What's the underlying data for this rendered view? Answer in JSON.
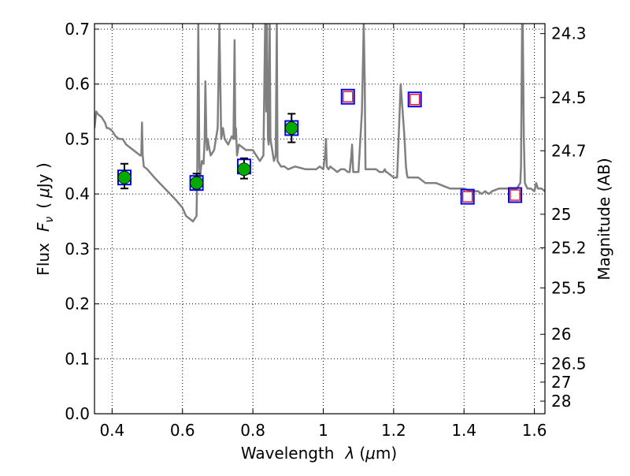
{
  "chart_data": {
    "type": "line",
    "xlabel_text": "Wavelength",
    "xlabel_symbol": "λ",
    "xlabel_unit_open": "(",
    "xlabel_unit_mu": "μ",
    "xlabel_unit_rest": "m)",
    "ylabel_text": "Flux",
    "ylabel_symbol": "F",
    "ylabel_subscript": "ν",
    "ylabel_unit_open": "(",
    "ylabel_unit_mu": "μ",
    "ylabel_unit_rest": "Jy )",
    "y2label": "Magnitude (AB)",
    "xlim": [
      0.35,
      1.63
    ],
    "ylim": [
      0.0,
      0.71
    ],
    "grid": true,
    "grid_style": "dotted",
    "x_ticks": [
      {
        "value": 0.4,
        "label": "0.4"
      },
      {
        "value": 0.6,
        "label": "0.6"
      },
      {
        "value": 0.8,
        "label": "0.8"
      },
      {
        "value": 1.0,
        "label": "1"
      },
      {
        "value": 1.2,
        "label": "1.2"
      },
      {
        "value": 1.4,
        "label": "1.4"
      },
      {
        "value": 1.6,
        "label": "1.6"
      }
    ],
    "y_ticks": [
      {
        "value": 0.0,
        "label": "0.0"
      },
      {
        "value": 0.1,
        "label": "0.1"
      },
      {
        "value": 0.2,
        "label": "0.2"
      },
      {
        "value": 0.3,
        "label": "0.3"
      },
      {
        "value": 0.4,
        "label": "0.4"
      },
      {
        "value": 0.5,
        "label": "0.5"
      },
      {
        "value": 0.6,
        "label": "0.6"
      },
      {
        "value": 0.7,
        "label": "0.7"
      }
    ],
    "y2_ticks": [
      {
        "value": 24.3,
        "label": "24.3"
      },
      {
        "value": 24.5,
        "label": "24.5"
      },
      {
        "value": 24.7,
        "label": "24.7"
      },
      {
        "value": 25.0,
        "label": "25"
      },
      {
        "value": 25.2,
        "label": "25.2"
      },
      {
        "value": 25.5,
        "label": "25.5"
      },
      {
        "value": 26.0,
        "label": "26"
      },
      {
        "value": 26.5,
        "label": "26.5"
      },
      {
        "value": 27.0,
        "label": "27"
      },
      {
        "value": 28.0,
        "label": "28"
      }
    ],
    "series": [
      {
        "kind": "model-spectrum",
        "color": "#808080",
        "x": [
          0.35,
          0.355,
          0.36,
          0.37,
          0.38,
          0.385,
          0.39,
          0.4,
          0.41,
          0.42,
          0.43,
          0.44,
          0.45,
          0.46,
          0.47,
          0.48,
          0.483,
          0.485,
          0.487,
          0.49,
          0.5,
          0.52,
          0.55,
          0.58,
          0.6,
          0.61,
          0.62,
          0.63,
          0.64,
          0.642,
          0.645,
          0.648,
          0.65,
          0.653,
          0.655,
          0.66,
          0.663,
          0.665,
          0.668,
          0.67,
          0.672,
          0.674,
          0.68,
          0.69,
          0.7,
          0.705,
          0.71,
          0.715,
          0.72,
          0.73,
          0.74,
          0.745,
          0.748,
          0.75,
          0.752,
          0.755,
          0.76,
          0.78,
          0.8,
          0.82,
          0.83,
          0.835,
          0.838,
          0.84,
          0.843,
          0.845,
          0.848,
          0.85,
          0.855,
          0.86,
          0.865,
          0.868,
          0.87,
          0.875,
          0.88,
          0.89,
          0.9,
          0.92,
          0.95,
          0.98,
          0.99,
          1.0,
          1.005,
          1.008,
          1.01,
          1.015,
          1.02,
          1.03,
          1.04,
          1.05,
          1.06,
          1.07,
          1.075,
          1.08,
          1.082,
          1.085,
          1.09,
          1.1,
          1.11,
          1.115,
          1.118,
          1.12,
          1.13,
          1.14,
          1.15,
          1.16,
          1.17,
          1.175,
          1.178,
          1.18,
          1.19,
          1.2,
          1.21,
          1.22,
          1.23,
          1.235,
          1.238,
          1.24,
          1.245,
          1.25,
          1.26,
          1.27,
          1.28,
          1.29,
          1.3,
          1.32,
          1.34,
          1.36,
          1.38,
          1.4,
          1.42,
          1.44,
          1.45,
          1.46,
          1.47,
          1.48,
          1.5,
          1.52,
          1.54,
          1.55,
          1.56,
          1.562,
          1.565,
          1.567,
          1.57,
          1.573,
          1.58,
          1.59,
          1.6,
          1.605,
          1.61,
          1.62,
          1.63
        ],
        "y": [
          0.52,
          0.55,
          0.545,
          0.54,
          0.53,
          0.52,
          0.52,
          0.515,
          0.505,
          0.5,
          0.5,
          0.49,
          0.485,
          0.48,
          0.475,
          0.47,
          0.47,
          0.53,
          0.47,
          0.45,
          0.445,
          0.43,
          0.41,
          0.39,
          0.375,
          0.36,
          0.355,
          0.35,
          0.36,
          0.45,
          0.71,
          0.45,
          0.43,
          0.45,
          0.46,
          0.455,
          0.5,
          0.605,
          0.5,
          0.48,
          0.5,
          0.49,
          0.47,
          0.48,
          0.52,
          0.71,
          0.5,
          0.52,
          0.5,
          0.49,
          0.505,
          0.5,
          0.68,
          0.5,
          0.52,
          0.47,
          0.49,
          0.48,
          0.48,
          0.46,
          0.47,
          0.71,
          0.55,
          0.71,
          0.5,
          0.49,
          0.71,
          0.5,
          0.48,
          0.46,
          0.47,
          0.71,
          0.46,
          0.455,
          0.45,
          0.45,
          0.445,
          0.45,
          0.445,
          0.445,
          0.45,
          0.445,
          0.47,
          0.5,
          0.45,
          0.445,
          0.45,
          0.445,
          0.44,
          0.445,
          0.445,
          0.44,
          0.44,
          0.47,
          0.49,
          0.44,
          0.44,
          0.44,
          0.55,
          0.71,
          0.6,
          0.445,
          0.445,
          0.445,
          0.445,
          0.44,
          0.44,
          0.445,
          0.44,
          0.44,
          0.435,
          0.43,
          0.43,
          0.6,
          0.51,
          0.45,
          0.435,
          0.43,
          0.43,
          0.43,
          0.43,
          0.43,
          0.425,
          0.42,
          0.42,
          0.42,
          0.415,
          0.41,
          0.41,
          0.41,
          0.405,
          0.405,
          0.4,
          0.405,
          0.4,
          0.405,
          0.41,
          0.41,
          0.41,
          0.41,
          0.42,
          0.45,
          0.71,
          0.71,
          0.5,
          0.42,
          0.41,
          0.41,
          0.405,
          0.42,
          0.41,
          0.41,
          0.405
        ]
      },
      {
        "kind": "model-photometry",
        "marker": "square",
        "edgecolor": "#0000ff",
        "points": [
          [
            0.435,
            0.43
          ],
          [
            0.64,
            0.42
          ],
          [
            0.775,
            0.45
          ],
          [
            0.91,
            0.52
          ],
          [
            1.07,
            0.577
          ],
          [
            1.26,
            0.572
          ],
          [
            1.41,
            0.395
          ],
          [
            1.545,
            0.398
          ]
        ]
      },
      {
        "kind": "upper-limit",
        "marker": "square",
        "edgecolor": "#ff0000",
        "points": [
          [
            1.07,
            0.577
          ],
          [
            1.26,
            0.572
          ],
          [
            1.41,
            0.395
          ],
          [
            1.545,
            0.398
          ]
        ]
      },
      {
        "kind": "observed",
        "marker": "circle",
        "color": "#00aa00",
        "points": [
          {
            "x": 0.435,
            "y": 0.43,
            "ylow": 0.41,
            "yhigh": 0.455
          },
          {
            "x": 0.64,
            "y": 0.42,
            "ylow": 0.41,
            "yhigh": 0.437
          },
          {
            "x": 0.775,
            "y": 0.445,
            "ylow": 0.428,
            "yhigh": 0.465
          },
          {
            "x": 0.91,
            "y": 0.52,
            "ylow": 0.494,
            "yhigh": 0.546
          }
        ]
      }
    ]
  }
}
